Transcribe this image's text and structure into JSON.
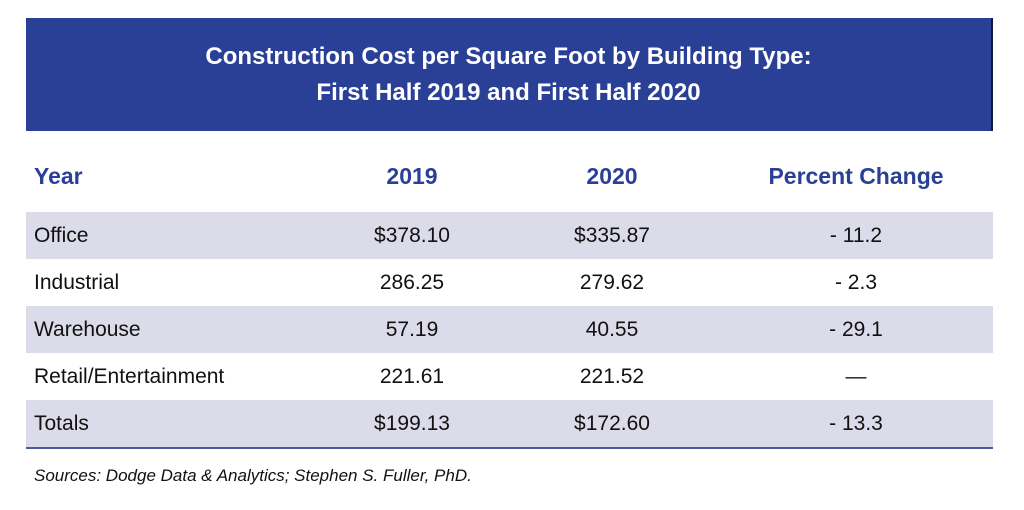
{
  "chart_data": {
    "type": "table",
    "title_lines": [
      "Construction Cost per Square Foot by Building Type:",
      "First Half 2019 and First Half 2020"
    ],
    "columns": [
      "Year",
      "2019",
      "2020",
      "Percent Change"
    ],
    "rows": [
      [
        "Office",
        "$378.10",
        "$335.87",
        "- 11.2"
      ],
      [
        "Industrial",
        "286.25",
        "279.62",
        "- 2.3"
      ],
      [
        "Warehouse",
        "57.19",
        "40.55",
        "- 29.1"
      ],
      [
        "Retail/Entertainment",
        "221.61",
        "221.52",
        "—"
      ],
      [
        "Totals",
        "$199.13",
        "$172.60",
        "- 13.3"
      ]
    ],
    "source": "Sources: Dodge Data & Analytics; Stephen S. Fuller, PhD."
  },
  "colors": {
    "banner": "#2a3f96",
    "header_text": "#2a3f96",
    "shaded_row": "#dbdbe9"
  }
}
